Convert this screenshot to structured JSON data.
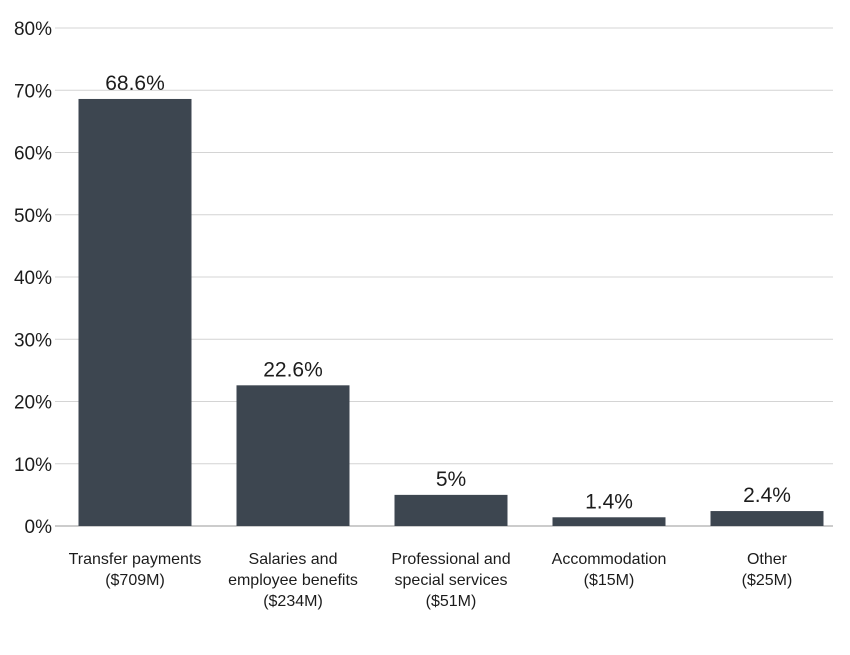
{
  "chart_data": {
    "type": "bar",
    "title": "",
    "xlabel": "",
    "ylabel": "",
    "ylim": [
      0,
      80
    ],
    "y_ticks": [
      "0%",
      "10%",
      "20%",
      "30%",
      "40%",
      "50%",
      "60%",
      "70%",
      "80%"
    ],
    "y_tick_values": [
      0,
      10,
      20,
      30,
      40,
      50,
      60,
      70,
      80
    ],
    "grid": true,
    "legend": "none",
    "bar_color": "#3d4650",
    "categories": [
      [
        "Transfer payments",
        "($709M)"
      ],
      [
        "Salaries and",
        "employee benefits",
        "($234M)"
      ],
      [
        "Professional and",
        "special services",
        "($51M)"
      ],
      [
        "Accommodation",
        "($15M)"
      ],
      [
        "Other",
        "($25M)"
      ]
    ],
    "values": [
      68.6,
      22.6,
      5,
      1.4,
      2.4
    ],
    "data_labels": [
      "68.6%",
      "22.6%",
      "5%",
      "1.4%",
      "2.4%"
    ]
  }
}
